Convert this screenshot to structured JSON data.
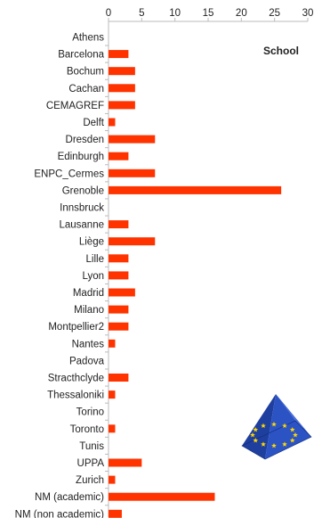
{
  "chart_data": {
    "type": "bar",
    "orientation": "horizontal",
    "categories": [
      "Athens",
      "Barcelona",
      "Bochum",
      "Cachan",
      "CEMAGREF",
      "Delft",
      "Dresden",
      "Edinburgh",
      "ENPC_Cermes",
      "Grenoble",
      "Innsbruck",
      "Lausanne",
      "Liège",
      "Lille",
      "Lyon",
      "Madrid",
      "Milano",
      "Montpellier2",
      "Nantes",
      "Padova",
      "Stracthclyde",
      "Thessaloniki",
      "Torino",
      "Toronto",
      "Tunis",
      "UPPA",
      "Zurich",
      "NM (academic)",
      "NM (non academic)"
    ],
    "series": [
      {
        "name": "School",
        "values": [
          0,
          3,
          4,
          4,
          4,
          1,
          7,
          3,
          7,
          26,
          0,
          3,
          7,
          3,
          3,
          4,
          3,
          3,
          1,
          0,
          3,
          1,
          0,
          1,
          0,
          5,
          1,
          16,
          2
        ]
      }
    ],
    "xlim": [
      0,
      30
    ],
    "xticks": [
      0,
      5,
      10,
      15,
      20,
      25,
      30
    ],
    "xaxis_position": "top",
    "grid": false,
    "legend_position": "top-right",
    "colors": {
      "bar": "#ff3300",
      "axis": "#bbbbbb"
    },
    "logo_icon": "eu-pyramid-icon"
  }
}
